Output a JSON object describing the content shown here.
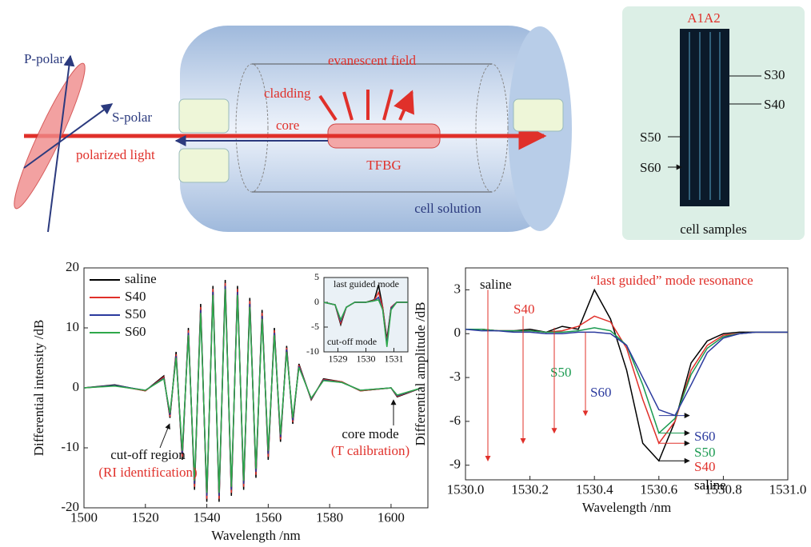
{
  "diagram": {
    "labels": {
      "p_polar": "P-polar",
      "s_polar": "S-polar",
      "polarized_light": "polarized light",
      "evanescent": "evanescent field",
      "cladding": "cladding",
      "core": "core",
      "tfbg": "TFBG",
      "cell_solution": "cell solution"
    },
    "samples": {
      "title": "A1A2",
      "s30": "S30",
      "s40": "S40",
      "s50": "S50",
      "s60": "S60",
      "caption": "cell samples"
    }
  },
  "chart_data": [
    {
      "type": "line",
      "x_label": "Wavelength /nm",
      "y_label": "Differential intensity /dB",
      "xlim": [
        1500,
        1612
      ],
      "ylim": [
        -20,
        20
      ],
      "xticks": [
        1500,
        1520,
        1540,
        1560,
        1580,
        1600
      ],
      "yticks": [
        -20,
        -10,
        0,
        10,
        20
      ],
      "x": [
        1500,
        1510,
        1520,
        1526,
        1528,
        1530,
        1532,
        1534,
        1536,
        1538,
        1540,
        1542,
        1544,
        1546,
        1548,
        1550,
        1552,
        1554,
        1556,
        1558,
        1560,
        1562,
        1564,
        1566,
        1568,
        1570,
        1574,
        1578,
        1584,
        1590,
        1600,
        1602,
        1610
      ],
      "series": [
        {
          "name": "saline",
          "color": "#000000",
          "values": [
            0,
            0.5,
            -0.5,
            2,
            -5,
            6,
            -12,
            10,
            -17,
            14,
            -19,
            17,
            -19,
            18,
            -18,
            17,
            -17,
            15,
            -15,
            13,
            -12,
            10,
            -9,
            7,
            -6,
            4,
            -2,
            1.5,
            1,
            -0.5,
            0,
            -1.5,
            0
          ]
        },
        {
          "name": "S40",
          "color": "#e0302a",
          "values": [
            0,
            0.4,
            -0.5,
            1.8,
            -4.8,
            5.6,
            -11.5,
            9.6,
            -16.5,
            13.5,
            -18.5,
            16.5,
            -18.5,
            17.5,
            -17.5,
            16.5,
            -16.5,
            14.5,
            -14.5,
            12.5,
            -11.5,
            9.6,
            -8.6,
            6.7,
            -5.7,
            3.8,
            -1.9,
            1.4,
            1,
            -0.5,
            0,
            -1.4,
            0
          ]
        },
        {
          "name": "S50",
          "color": "#2b3a9e",
          "values": [
            0,
            0.4,
            -0.4,
            1.6,
            -4.5,
            5.3,
            -11,
            9.2,
            -16,
            13,
            -18,
            16,
            -18,
            17,
            -17,
            16,
            -16,
            14,
            -14,
            12,
            -11,
            9.2,
            -8.2,
            6.4,
            -5.4,
            3.6,
            -1.8,
            1.3,
            0.9,
            -0.4,
            0,
            -1.3,
            0
          ]
        },
        {
          "name": "S60",
          "color": "#2ea84a",
          "values": [
            0,
            0.3,
            -0.4,
            1.5,
            -4.2,
            5,
            -10.5,
            8.8,
            -15.5,
            12.5,
            -17.5,
            15.5,
            -17.5,
            16.5,
            -16.5,
            15.5,
            -15.5,
            13.5,
            -13.5,
            11.5,
            -10.5,
            8.8,
            -7.8,
            6,
            -5,
            3.4,
            -1.7,
            1.2,
            0.9,
            -0.4,
            0,
            -1.2,
            0
          ]
        }
      ],
      "annotations": {
        "cutoff": "cut-off region",
        "ri": "(RI identification)",
        "core": "core mode",
        "t": "(T calibration)"
      }
    },
    {
      "type": "line",
      "xlim": [
        1528.5,
        1531.5
      ],
      "ylim": [
        -10,
        5
      ],
      "xticks": [
        1529,
        1530,
        1531
      ],
      "yticks": [
        -10,
        -5,
        0,
        5
      ],
      "x": [
        1528.5,
        1528.9,
        1529.1,
        1529.3,
        1529.6,
        1530,
        1530.3,
        1530.45,
        1530.6,
        1530.75,
        1530.9,
        1531.1,
        1531.5
      ],
      "series": [
        {
          "color": "#000000",
          "values": [
            0,
            -0.5,
            -4.5,
            -1,
            0,
            0,
            0.5,
            3.5,
            -1,
            -7.5,
            -1,
            0,
            0
          ]
        },
        {
          "color": "#e0302a",
          "values": [
            0,
            -0.5,
            -4.2,
            -1,
            0,
            0,
            0.4,
            2,
            -1,
            -8,
            -1,
            0,
            0
          ]
        },
        {
          "color": "#2b3a9e",
          "values": [
            0,
            -0.5,
            -3.8,
            -1,
            0,
            0,
            0.3,
            1,
            -1.5,
            -8.5,
            -1.2,
            0,
            0
          ]
        },
        {
          "color": "#2ea84a",
          "values": [
            0,
            -0.5,
            -3.5,
            -1,
            0,
            0,
            0.3,
            0.5,
            -1.5,
            -9,
            -1.5,
            0,
            0
          ]
        }
      ],
      "annotations": {
        "last": "last guided mode",
        "cutoff": "cut-off mode"
      }
    },
    {
      "type": "line",
      "x_label": "Wavelength /nm",
      "y_label": "Differential amplitude /dB",
      "xlim": [
        1530,
        1531
      ],
      "ylim": [
        -10,
        4.5
      ],
      "xticks": [
        {
          "value": 1530,
          "label": "1530.0"
        },
        {
          "value": 1530.2,
          "label": "1530.2"
        },
        {
          "value": 1530.4,
          "label": "1530.4"
        },
        {
          "value": 1530.6,
          "label": "1530.6"
        },
        {
          "value": 1530.8,
          "label": "1530.8"
        },
        {
          "value": 1531,
          "label": "1531.0"
        }
      ],
      "yticks": [
        -9,
        -6,
        -3,
        0,
        3
      ],
      "x": [
        1530,
        1530.05,
        1530.1,
        1530.15,
        1530.2,
        1530.25,
        1530.3,
        1530.35,
        1530.4,
        1530.45,
        1530.5,
        1530.55,
        1530.6,
        1530.65,
        1530.7,
        1530.75,
        1530.8,
        1530.85,
        1530.9,
        1530.95,
        1531
      ],
      "series": [
        {
          "name": "saline",
          "color": "#000000",
          "values": [
            0.3,
            0.3,
            0.2,
            0.2,
            0.3,
            0.1,
            0.5,
            0.3,
            3,
            1,
            -2.5,
            -7.5,
            -8.7,
            -6,
            -2,
            -0.5,
            0,
            0.1,
            0.1,
            0.1,
            0.1
          ]
        },
        {
          "name": "S40",
          "color": "#e0302a",
          "values": [
            0.3,
            0.3,
            0.2,
            0.2,
            0.2,
            0.1,
            0.2,
            0.5,
            1.2,
            0.8,
            -1,
            -4.5,
            -7.5,
            -6,
            -2.5,
            -0.8,
            -0.1,
            0,
            0.1,
            0.1,
            0.1
          ]
        },
        {
          "name": "S50",
          "color": "#1a9a50",
          "values": [
            0.3,
            0.3,
            0.2,
            0.2,
            0.2,
            0.1,
            0.1,
            0.2,
            0.4,
            0.2,
            -0.8,
            -3.5,
            -6.8,
            -5.8,
            -2.8,
            -1,
            -0.2,
            0,
            0.1,
            0.1,
            0.1
          ]
        },
        {
          "name": "S60",
          "color": "#2b3a9e",
          "values": [
            0.3,
            0.2,
            0.2,
            0.1,
            0.1,
            0,
            0,
            0.1,
            0.1,
            0,
            -0.8,
            -3,
            -5.2,
            -5.6,
            -3.5,
            -1.3,
            -0.3,
            0,
            0.1,
            0.1,
            0.1
          ]
        }
      ],
      "annotations": {
        "title": "“last guided” mode resonance",
        "saline": "saline",
        "s40": "S40",
        "s50": "S50",
        "s60": "S60"
      }
    }
  ]
}
